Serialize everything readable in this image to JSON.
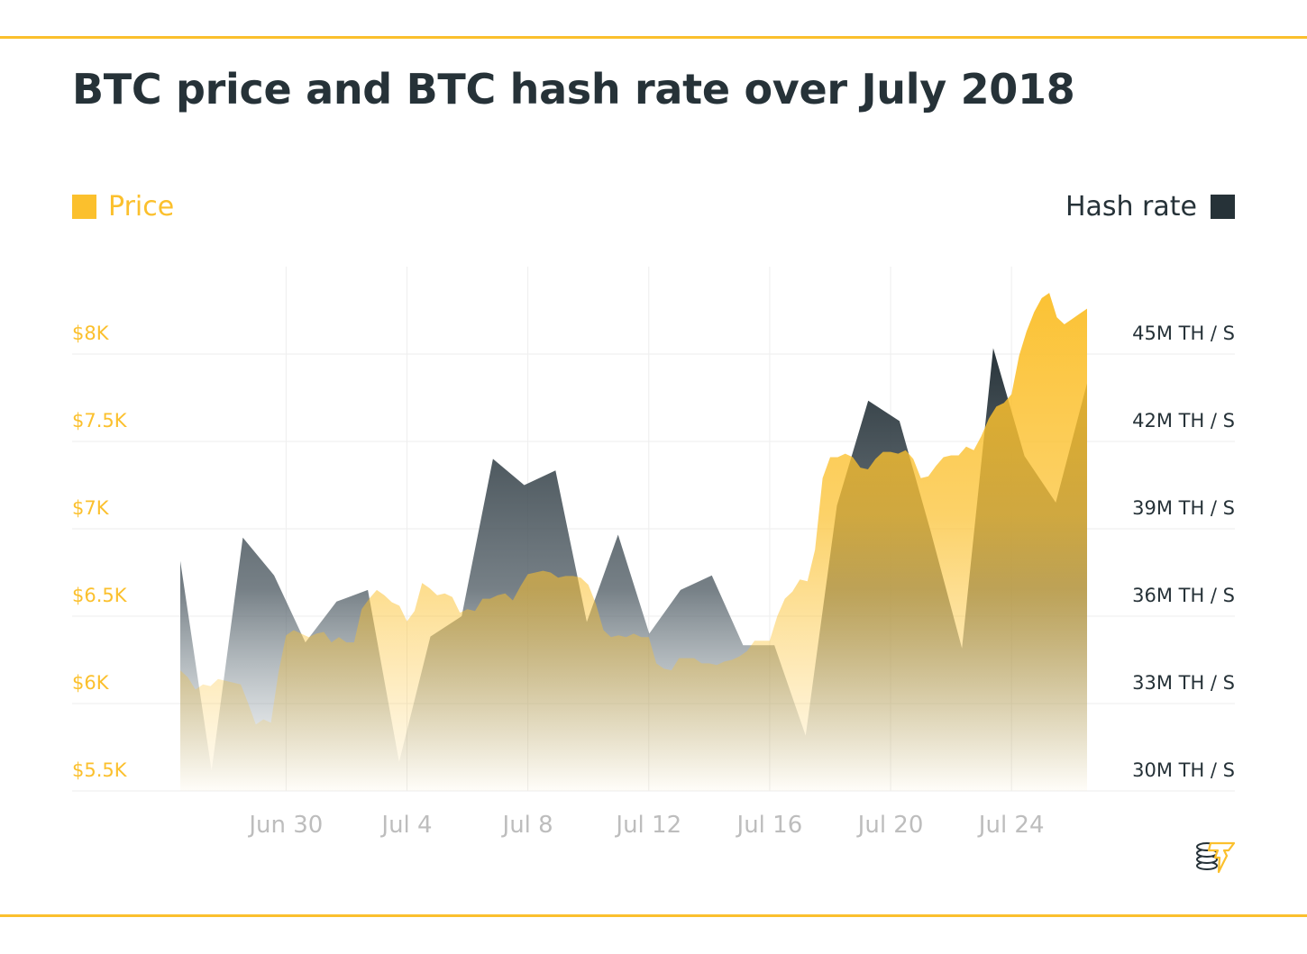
{
  "title": "BTC price and BTC hash rate over July 2018",
  "colors": {
    "price": "#FBC02D",
    "hash_rate": "#263238",
    "rule": "#FBC02D",
    "grid": "#EEEEEE",
    "x_tick_text": "#BDBDBD"
  },
  "logo": {
    "icon": "coin-stack-lightning-icon"
  },
  "chart_data": {
    "type": "area",
    "title": "BTC price and BTC hash rate over July 2018",
    "grid": true,
    "legend": [
      {
        "label": "Price",
        "placement": "top-left",
        "color": "#FBC02D"
      },
      {
        "label": "Hash rate",
        "placement": "top-right",
        "color": "#263238"
      }
    ],
    "x_range": [
      "2018-06-26T12:00",
      "2018-07-26T12:00"
    ],
    "x_ticks": [
      {
        "label": "Jun 30",
        "date": "2018-06-30"
      },
      {
        "label": "Jul 4",
        "date": "2018-07-04"
      },
      {
        "label": "Jul 8",
        "date": "2018-07-08"
      },
      {
        "label": "Jul 12",
        "date": "2018-07-12"
      },
      {
        "label": "Jul 16",
        "date": "2018-07-16"
      },
      {
        "label": "Jul 20",
        "date": "2018-07-20"
      },
      {
        "label": "Jul 24",
        "date": "2018-07-24"
      }
    ],
    "y_left": {
      "unit": "USD",
      "ylim": [
        5500,
        8000
      ],
      "ticks": [
        {
          "label": "$5.5K",
          "value": 5500
        },
        {
          "label": "$6K",
          "value": 6000
        },
        {
          "label": "$6.5K",
          "value": 6500
        },
        {
          "label": "$7K",
          "value": 7000
        },
        {
          "label": "$7.5K",
          "value": 7500
        },
        {
          "label": "$8K",
          "value": 8000
        }
      ]
    },
    "y_right": {
      "unit": "M TH/s",
      "ylim": [
        30,
        45
      ],
      "ticks": [
        {
          "label": "30M TH / S",
          "value": 30
        },
        {
          "label": "33M TH / S",
          "value": 33
        },
        {
          "label": "36M TH / S",
          "value": 36
        },
        {
          "label": "39M TH / S",
          "value": 39
        },
        {
          "label": "42M TH / S",
          "value": 42
        },
        {
          "label": "45M TH / S",
          "value": 45
        }
      ]
    },
    "series": [
      {
        "name": "Price",
        "axis": "left",
        "points": [
          [
            "2018-06-26T12:00",
            6190
          ],
          [
            "2018-06-26T18:00",
            6150
          ],
          [
            "2018-06-27T00:00",
            6080
          ],
          [
            "2018-06-27T06:00",
            6110
          ],
          [
            "2018-06-27T12:00",
            6100
          ],
          [
            "2018-06-27T18:00",
            6140
          ],
          [
            "2018-06-28T00:00",
            6130
          ],
          [
            "2018-06-28T06:00",
            6120
          ],
          [
            "2018-06-28T12:00",
            6110
          ],
          [
            "2018-06-28T18:00",
            6000
          ],
          [
            "2018-06-29T00:00",
            5880
          ],
          [
            "2018-06-29T06:00",
            5910
          ],
          [
            "2018-06-29T12:00",
            5890
          ],
          [
            "2018-06-29T18:00",
            6180
          ],
          [
            "2018-06-30T00:00",
            6390
          ],
          [
            "2018-06-30T06:00",
            6420
          ],
          [
            "2018-06-30T12:00",
            6400
          ],
          [
            "2018-06-30T18:00",
            6380
          ],
          [
            "2018-07-01T00:00",
            6400
          ],
          [
            "2018-07-01T06:00",
            6410
          ],
          [
            "2018-07-01T12:00",
            6350
          ],
          [
            "2018-07-01T18:00",
            6380
          ],
          [
            "2018-07-02T00:00",
            6350
          ],
          [
            "2018-07-02T06:00",
            6350
          ],
          [
            "2018-07-02T12:00",
            6540
          ],
          [
            "2018-07-02T18:00",
            6600
          ],
          [
            "2018-07-03T00:00",
            6650
          ],
          [
            "2018-07-03T06:00",
            6620
          ],
          [
            "2018-07-03T12:00",
            6580
          ],
          [
            "2018-07-03T18:00",
            6560
          ],
          [
            "2018-07-04T00:00",
            6470
          ],
          [
            "2018-07-04T06:00",
            6530
          ],
          [
            "2018-07-04T12:00",
            6690
          ],
          [
            "2018-07-04T18:00",
            6660
          ],
          [
            "2018-07-05T00:00",
            6620
          ],
          [
            "2018-07-05T06:00",
            6630
          ],
          [
            "2018-07-05T12:00",
            6610
          ],
          [
            "2018-07-05T18:00",
            6520
          ],
          [
            "2018-07-06T00:00",
            6540
          ],
          [
            "2018-07-06T06:00",
            6530
          ],
          [
            "2018-07-06T12:00",
            6600
          ],
          [
            "2018-07-06T18:00",
            6600
          ],
          [
            "2018-07-07T00:00",
            6620
          ],
          [
            "2018-07-07T06:00",
            6630
          ],
          [
            "2018-07-07T12:00",
            6590
          ],
          [
            "2018-07-07T18:00",
            6670
          ],
          [
            "2018-07-08T00:00",
            6740
          ],
          [
            "2018-07-08T06:00",
            6750
          ],
          [
            "2018-07-08T12:00",
            6760
          ],
          [
            "2018-07-08T18:00",
            6750
          ],
          [
            "2018-07-09T00:00",
            6720
          ],
          [
            "2018-07-09T06:00",
            6730
          ],
          [
            "2018-07-09T12:00",
            6730
          ],
          [
            "2018-07-09T18:00",
            6720
          ],
          [
            "2018-07-10T00:00",
            6680
          ],
          [
            "2018-07-10T06:00",
            6570
          ],
          [
            "2018-07-10T12:00",
            6420
          ],
          [
            "2018-07-10T18:00",
            6380
          ],
          [
            "2018-07-11T00:00",
            6390
          ],
          [
            "2018-07-11T06:00",
            6380
          ],
          [
            "2018-07-11T12:00",
            6400
          ],
          [
            "2018-07-11T18:00",
            6380
          ],
          [
            "2018-07-12T00:00",
            6380
          ],
          [
            "2018-07-12T06:00",
            6230
          ],
          [
            "2018-07-12T12:00",
            6200
          ],
          [
            "2018-07-12T18:00",
            6190
          ],
          [
            "2018-07-13T00:00",
            6260
          ],
          [
            "2018-07-13T06:00",
            6260
          ],
          [
            "2018-07-13T12:00",
            6260
          ],
          [
            "2018-07-13T18:00",
            6230
          ],
          [
            "2018-07-14T00:00",
            6230
          ],
          [
            "2018-07-14T06:00",
            6220
          ],
          [
            "2018-07-14T12:00",
            6240
          ],
          [
            "2018-07-14T18:00",
            6250
          ],
          [
            "2018-07-15T00:00",
            6270
          ],
          [
            "2018-07-15T06:00",
            6300
          ],
          [
            "2018-07-15T12:00",
            6360
          ],
          [
            "2018-07-15T18:00",
            6360
          ],
          [
            "2018-07-16T00:00",
            6360
          ],
          [
            "2018-07-16T06:00",
            6500
          ],
          [
            "2018-07-16T12:00",
            6600
          ],
          [
            "2018-07-16T18:00",
            6640
          ],
          [
            "2018-07-17T00:00",
            6710
          ],
          [
            "2018-07-17T06:00",
            6700
          ],
          [
            "2018-07-17T12:00",
            6880
          ],
          [
            "2018-07-17T18:00",
            7290
          ],
          [
            "2018-07-18T00:00",
            7410
          ],
          [
            "2018-07-18T06:00",
            7410
          ],
          [
            "2018-07-18T12:00",
            7430
          ],
          [
            "2018-07-18T18:00",
            7410
          ],
          [
            "2018-07-19T00:00",
            7350
          ],
          [
            "2018-07-19T06:00",
            7340
          ],
          [
            "2018-07-19T12:00",
            7400
          ],
          [
            "2018-07-19T18:00",
            7440
          ],
          [
            "2018-07-20T00:00",
            7440
          ],
          [
            "2018-07-20T06:00",
            7430
          ],
          [
            "2018-07-20T12:00",
            7450
          ],
          [
            "2018-07-20T18:00",
            7400
          ],
          [
            "2018-07-21T00:00",
            7290
          ],
          [
            "2018-07-21T06:00",
            7300
          ],
          [
            "2018-07-21T12:00",
            7360
          ],
          [
            "2018-07-21T18:00",
            7410
          ],
          [
            "2018-07-22T00:00",
            7420
          ],
          [
            "2018-07-22T06:00",
            7420
          ],
          [
            "2018-07-22T12:00",
            7470
          ],
          [
            "2018-07-22T18:00",
            7450
          ],
          [
            "2018-07-23T00:00",
            7530
          ],
          [
            "2018-07-23T06:00",
            7630
          ],
          [
            "2018-07-23T12:00",
            7700
          ],
          [
            "2018-07-23T18:00",
            7720
          ],
          [
            "2018-07-24T00:00",
            7770
          ],
          [
            "2018-07-24T06:00",
            7990
          ],
          [
            "2018-07-24T12:00",
            8130
          ],
          [
            "2018-07-24T18:00",
            8240
          ],
          [
            "2018-07-25T00:00",
            8320
          ],
          [
            "2018-07-25T06:00",
            8350
          ],
          [
            "2018-07-25T12:00",
            8210
          ],
          [
            "2018-07-25T18:00",
            8170
          ],
          [
            "2018-07-26T00:00",
            8200
          ],
          [
            "2018-07-26T06:00",
            8230
          ],
          [
            "2018-07-26T12:00",
            8260
          ]
        ]
      },
      {
        "name": "Hash rate",
        "axis": "right",
        "dates": [
          "2018-06-27",
          "2018-06-28",
          "2018-06-29",
          "2018-06-30",
          "2018-07-01",
          "2018-07-02",
          "2018-07-03",
          "2018-07-04",
          "2018-07-05",
          "2018-07-06",
          "2018-07-07",
          "2018-07-08",
          "2018-07-09",
          "2018-07-10",
          "2018-07-11",
          "2018-07-12",
          "2018-07-13",
          "2018-07-14",
          "2018-07-15",
          "2018-07-16",
          "2018-07-17",
          "2018-07-18",
          "2018-07-19",
          "2018-07-20",
          "2018-07-21",
          "2018-07-22",
          "2018-07-23",
          "2018-07-24",
          "2018-07-25",
          "2018-07-26"
        ],
        "values": [
          37.9,
          30.7,
          38.7,
          37.4,
          35.1,
          36.5,
          36.9,
          31.0,
          35.3,
          36.0,
          41.4,
          40.5,
          41.0,
          35.8,
          38.8,
          35.4,
          36.9,
          37.4,
          35.0,
          35.0,
          31.9,
          39.8,
          43.4,
          42.7,
          38.9,
          34.9,
          45.2,
          41.5,
          39.9,
          44.0
        ]
      }
    ]
  }
}
